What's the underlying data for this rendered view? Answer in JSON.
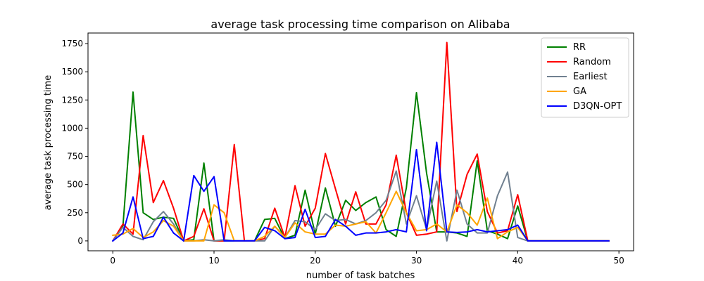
{
  "chart_data": {
    "type": "line",
    "title": "average task processing time comparison on Alibaba",
    "xlabel": "number of task batches",
    "ylabel": "average task processing time",
    "xlim": [
      -2.45,
      51.45
    ],
    "ylim": [
      -87.8,
      1843.8
    ],
    "xticks": [
      0,
      10,
      20,
      30,
      40,
      50
    ],
    "yticks": [
      0,
      250,
      500,
      750,
      1000,
      1250,
      1500,
      1750
    ],
    "grid": false,
    "legend_position": "top-right",
    "x": [
      0,
      1,
      2,
      3,
      4,
      5,
      6,
      7,
      8,
      9,
      10,
      11,
      12,
      13,
      14,
      15,
      16,
      17,
      18,
      19,
      20,
      21,
      22,
      23,
      24,
      25,
      26,
      27,
      28,
      29,
      30,
      31,
      32,
      33,
      34,
      35,
      36,
      37,
      38,
      39,
      40,
      41,
      42,
      43,
      44,
      45,
      46,
      47,
      48,
      49
    ],
    "series": [
      {
        "name": "RR",
        "color": "#008000",
        "values": [
          0,
          130,
          1320,
          250,
          190,
          210,
          200,
          0,
          10,
          690,
          0,
          0,
          0,
          0,
          0,
          190,
          200,
          20,
          50,
          450,
          60,
          470,
          130,
          360,
          270,
          340,
          390,
          100,
          40,
          470,
          1315,
          600,
          80,
          80,
          70,
          40,
          710,
          90,
          60,
          20,
          310,
          0,
          0,
          0,
          0,
          0,
          0,
          0,
          0,
          0
        ]
      },
      {
        "name": "Random",
        "color": "#ff0000",
        "values": [
          0,
          150,
          60,
          935,
          340,
          535,
          290,
          0,
          40,
          285,
          0,
          0,
          855,
          0,
          0,
          20,
          290,
          30,
          490,
          130,
          290,
          775,
          460,
          150,
          435,
          150,
          150,
          320,
          760,
          250,
          50,
          60,
          80,
          1760,
          260,
          590,
          770,
          260,
          70,
          90,
          410,
          0,
          0,
          0,
          0,
          0,
          0,
          0,
          0,
          0
        ]
      },
      {
        "name": "Earliest",
        "color": "#708090",
        "values": [
          0,
          120,
          40,
          10,
          170,
          260,
          150,
          0,
          0,
          10,
          0,
          10,
          0,
          0,
          0,
          0,
          130,
          30,
          180,
          170,
          100,
          240,
          180,
          190,
          150,
          180,
          250,
          360,
          620,
          150,
          400,
          100,
          530,
          0,
          450,
          150,
          70,
          70,
          400,
          610,
          30,
          0,
          0,
          0,
          0,
          0,
          0,
          0,
          0,
          0
        ]
      },
      {
        "name": "GA",
        "color": "#ffa500",
        "values": [
          50,
          60,
          110,
          30,
          80,
          180,
          130,
          0,
          0,
          0,
          320,
          250,
          0,
          0,
          0,
          40,
          130,
          30,
          160,
          80,
          60,
          60,
          140,
          130,
          150,
          170,
          70,
          250,
          440,
          250,
          90,
          100,
          150,
          80,
          320,
          250,
          140,
          380,
          20,
          80,
          120,
          0,
          0,
          0,
          0,
          0,
          0,
          0,
          0,
          0
        ]
      },
      {
        "name": "D3QN-OPT",
        "color": "#0000ff",
        "values": [
          0,
          70,
          390,
          20,
          40,
          210,
          70,
          0,
          580,
          440,
          570,
          0,
          0,
          0,
          0,
          120,
          90,
          20,
          30,
          280,
          30,
          40,
          190,
          130,
          50,
          70,
          70,
          80,
          100,
          80,
          810,
          90,
          875,
          80,
          75,
          80,
          100,
          80,
          90,
          100,
          140,
          0,
          0,
          0,
          0,
          0,
          0,
          0,
          0,
          0
        ]
      }
    ]
  }
}
